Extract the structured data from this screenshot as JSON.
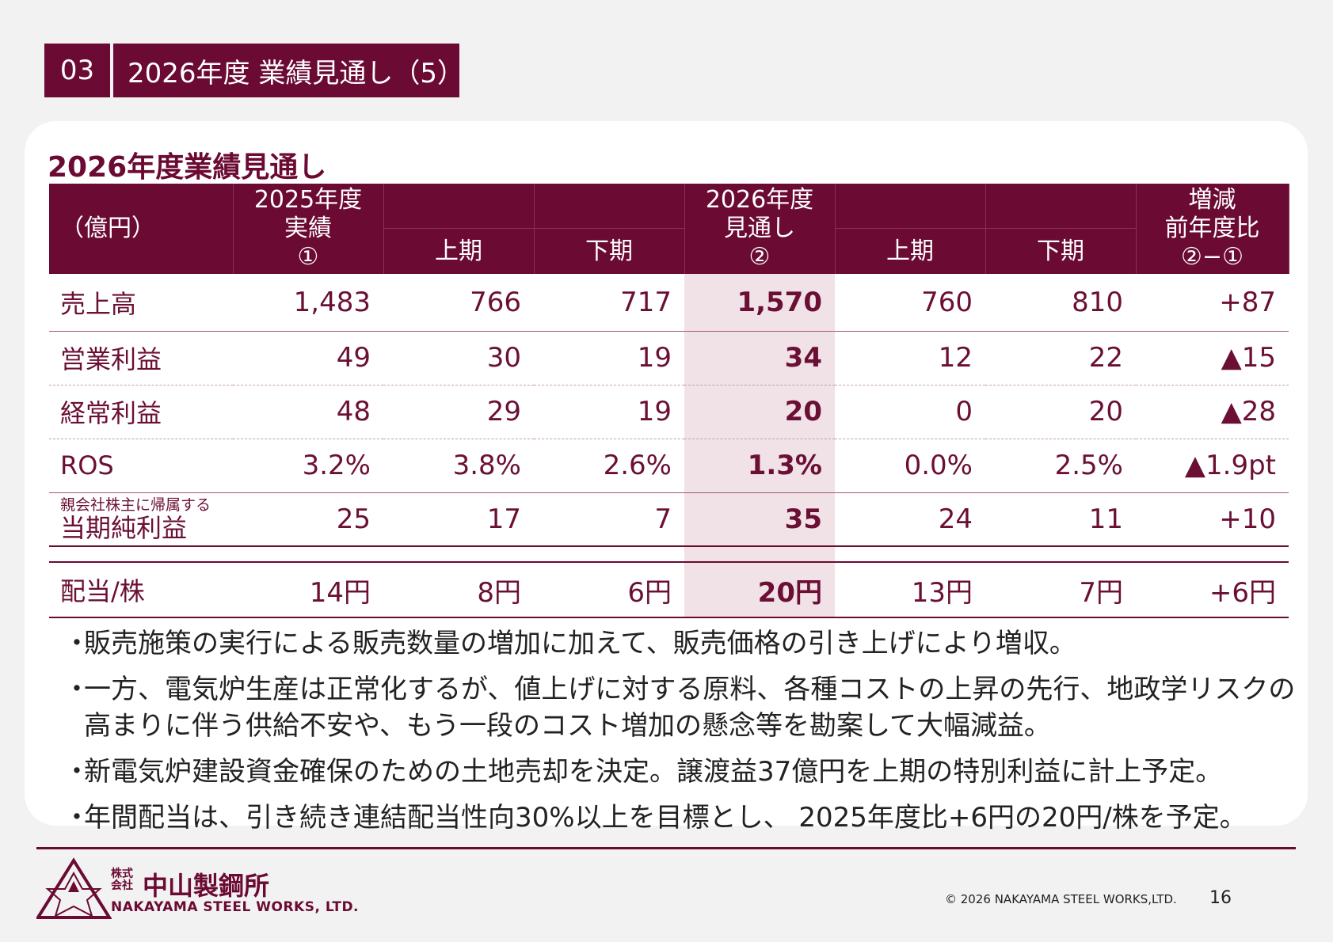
{
  "header": {
    "number": "03",
    "title": "2026年度  業績見通し（5）"
  },
  "section_title": "2026年度業績見通し",
  "table": {
    "unit_label": "（億円）",
    "col1": {
      "l1": "2025年度",
      "l2": "実績",
      "l3": "①"
    },
    "col2": "上期",
    "col3": "下期",
    "col4": {
      "l1": "2026年度",
      "l2": "見通し",
      "l3": "②"
    },
    "col5": "上期",
    "col6": "下期",
    "col7": {
      "l1": "増減",
      "l2": "前年度比",
      "l3": "②−①"
    },
    "rows": [
      {
        "label": "売上高",
        "v": [
          "1,483",
          "766",
          "717",
          "1,570",
          "760",
          "810",
          "+87"
        ]
      },
      {
        "label": "営業利益",
        "v": [
          "49",
          "30",
          "19",
          "34",
          "12",
          "22",
          "▲15"
        ]
      },
      {
        "label": "経常利益",
        "v": [
          "48",
          "29",
          "19",
          "20",
          "0",
          "20",
          "▲28"
        ]
      },
      {
        "label": "ROS",
        "v": [
          "3.2%",
          "3.8%",
          "2.6%",
          "1.3%",
          "0.0%",
          "2.5%",
          "▲1.9pt"
        ]
      },
      {
        "label_small": "親会社株主に帰属する",
        "label": "当期純利益",
        "v": [
          "25",
          "17",
          "7",
          "35",
          "24",
          "11",
          "+10"
        ]
      },
      {
        "label": "配当/株",
        "v": [
          "14円",
          "8円",
          "6円",
          "20円",
          "13円",
          "7円",
          "+6円"
        ]
      }
    ]
  },
  "bullets": [
    "販売施策の実行による販売数量の増加に加えて、販売価格の引き上げにより増収。",
    "一方、電気炉生産は正常化するが、値上げに対する原料、各種コストの上昇の先行、地政学リスクの高まりに伴う供給不安や、もう一段のコスト増加の懸念等を勘案して大幅減益。",
    "新電気炉建設資金確保のための土地売却を決定。譲渡益37億円を上期の特別利益に計上予定。",
    "年間配当は、引き続き連結配当性向30%以上を目標とし、 2025年度比+6円の20円/株を予定。"
  ],
  "bullet_marker": "・",
  "footer": {
    "company_type": "株式会社",
    "company_jp": "中山製鋼所",
    "company_en": "NAKAYAMA STEEL WORKS, LTD.",
    "copyright": "© 2026 NAKAYAMA STEEL WORKS,LTD.",
    "page": "16",
    "logo_icon": "star-of-david-triangle-logo"
  },
  "colors": {
    "brand": "#6b0a33",
    "highlight": "#f0e2e7"
  }
}
